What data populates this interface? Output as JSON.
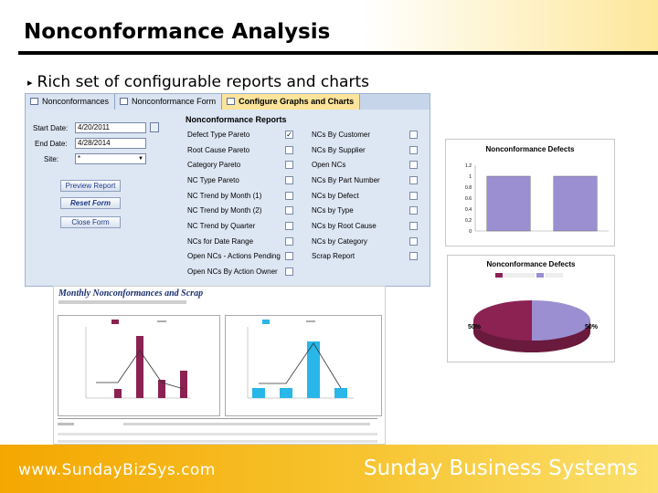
{
  "slide": {
    "title": "Nonconformance Analysis",
    "bullet": "Rich set of configurable reports and charts",
    "footer_url": "www.SundayBizSys.com",
    "footer_company": "Sunday Business Systems"
  },
  "form": {
    "tabs": [
      "Nonconformances",
      "Nonconformance Form",
      "Configure Graphs and Charts"
    ],
    "start_date_label": "Start Date:",
    "start_date_value": "4/20/2011",
    "end_date_label": "End Date:",
    "end_date_value": "4/28/2014",
    "site_label": "Site:",
    "site_value": "*",
    "buttons": [
      "Preview Report",
      "Reset Form",
      "Close Form"
    ],
    "reports_title": "Nonconformance Reports",
    "left_reports": [
      "Defect Type Pareto",
      "Root Cause Pareto",
      "Category Pareto",
      "NC Type Pareto",
      "NC Trend by Month (1)",
      "NC Trend by Month (2)",
      "NC Trend by Quarter",
      "NCs for Date Range",
      "Open NCs - Actions Pending",
      "Open NCs By Action Owner"
    ],
    "right_reports": [
      "NCs By Customer",
      "NCs By Supplier",
      "Open NCs",
      "NCs By Part Number",
      "NCs by Defect",
      "NCs by Type",
      "NCs by Root Cause",
      "NCs by Category",
      "Scrap Report"
    ],
    "checked": "Defect Type Pareto"
  },
  "chart_defects_bar": {
    "title": "Nonconformance Defects",
    "chart_data": {
      "type": "bar",
      "categories": [
        "",
        ""
      ],
      "values": [
        1,
        1
      ],
      "ylim": [
        0,
        1.2
      ],
      "yticks": [
        "1.2",
        "1",
        "0.8",
        "0.6",
        "0.4",
        "0.2",
        "0"
      ]
    }
  },
  "chart_defects_pie": {
    "title": "Nonconformance Defects",
    "chart_data": {
      "type": "pie",
      "values": [
        50,
        50
      ],
      "labels": [
        "50%",
        "50%"
      ]
    }
  },
  "monthly_report": {
    "title": "Monthly Nonconformances and Scrap",
    "colors": {
      "maroon": "#8b2252",
      "cyan": "#29b6e8"
    }
  }
}
